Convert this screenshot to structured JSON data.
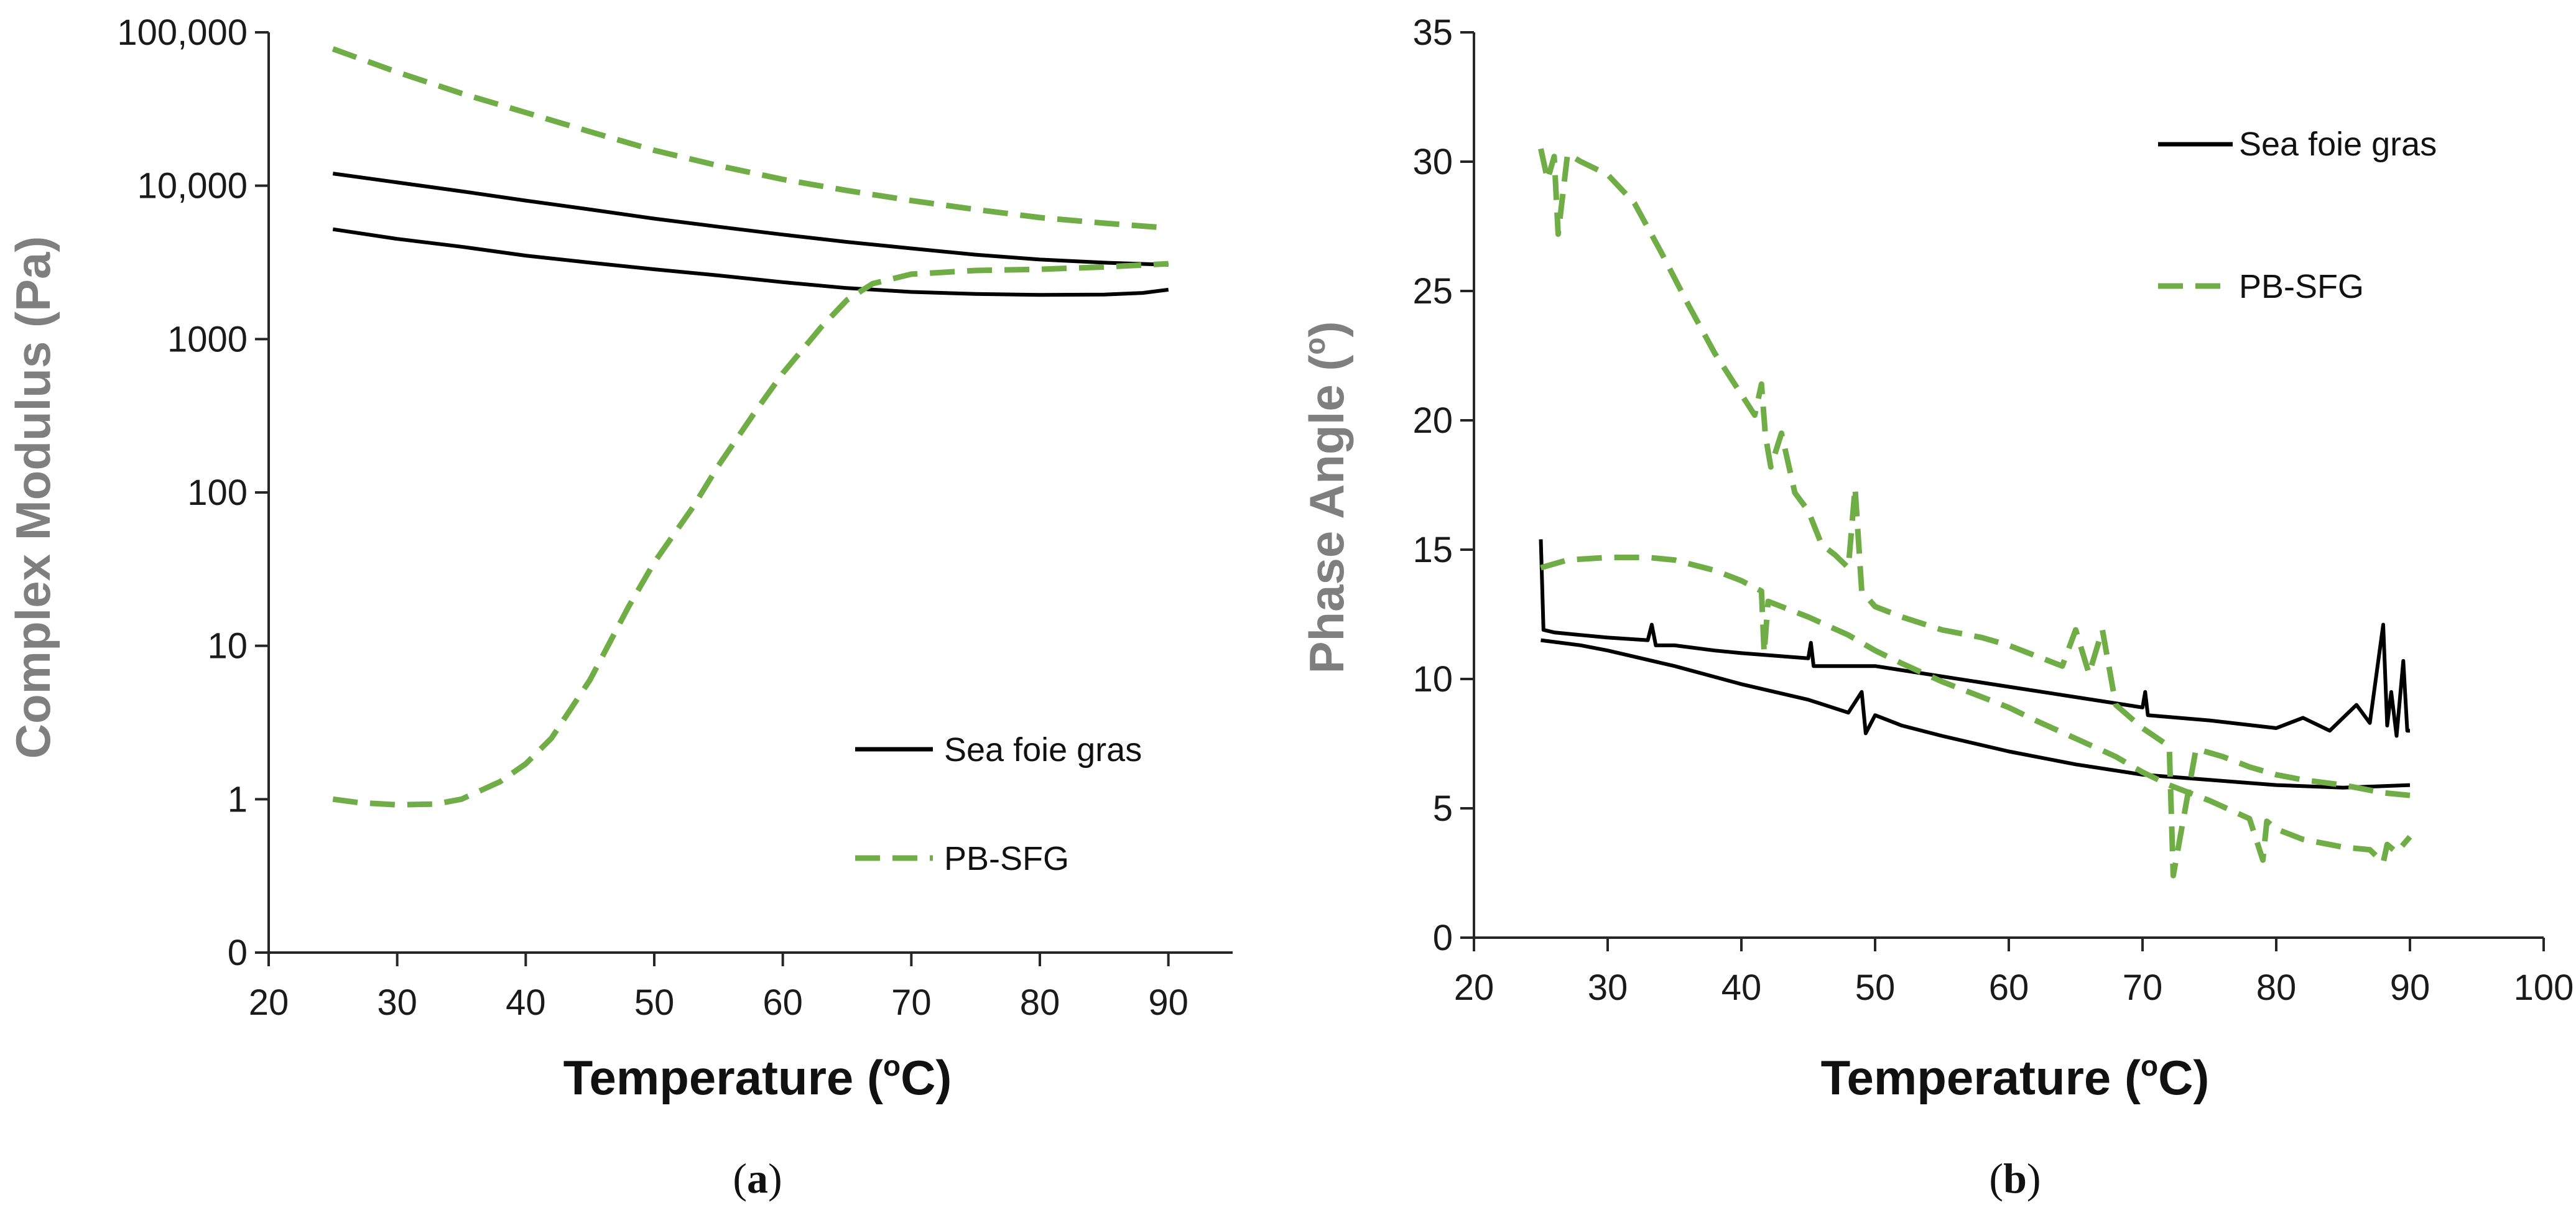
{
  "colors": {
    "black": "#000000",
    "green": "#70ad47",
    "axis": "#262626"
  },
  "chart_data": [
    {
      "id": "a",
      "type": "line",
      "panel_label": "a",
      "title": "",
      "xlabel": "Temperature (°C)",
      "xlabel_main": "Temperature (",
      "xlabel_deg": "o",
      "xlabel_tail": "C)",
      "ylabel": "Complex Modulus (Pa)",
      "yscale": "log",
      "xlim": [
        20,
        95
      ],
      "ylim": [
        0.1,
        100000
      ],
      "xticks": [
        20,
        30,
        40,
        50,
        60,
        70,
        80,
        90
      ],
      "yticks": [
        {
          "value": 0.1,
          "label": "0"
        },
        {
          "value": 1,
          "label": "1"
        },
        {
          "value": 10,
          "label": "10"
        },
        {
          "value": 100,
          "label": "100"
        },
        {
          "value": 1000,
          "label": "1000"
        },
        {
          "value": 10000,
          "label": "10,000"
        },
        {
          "value": 100000,
          "label": "100,000"
        }
      ],
      "legend": [
        {
          "name": "Sea foie gras",
          "style": "solid",
          "color": "#000000"
        },
        {
          "name": "PB-SFG",
          "style": "dashed",
          "color": "#70ad47"
        }
      ],
      "series": [
        {
          "name": "Sea foie gras (upper)",
          "style": "solid",
          "color": "#000000",
          "x": [
            25,
            30,
            35,
            40,
            45,
            50,
            55,
            60,
            65,
            70,
            75,
            80,
            85,
            90
          ],
          "y": [
            12000,
            10500,
            9200,
            8000,
            7000,
            6100,
            5400,
            4800,
            4300,
            3900,
            3550,
            3300,
            3150,
            3050
          ]
        },
        {
          "name": "Sea foie gras (lower)",
          "style": "solid",
          "color": "#000000",
          "x": [
            25,
            30,
            35,
            40,
            45,
            50,
            55,
            60,
            65,
            70,
            75,
            80,
            85,
            88,
            90
          ],
          "y": [
            5200,
            4500,
            4000,
            3500,
            3150,
            2850,
            2600,
            2350,
            2150,
            2030,
            1970,
            1940,
            1950,
            2000,
            2100
          ]
        },
        {
          "name": "PB-SFG (upper)",
          "style": "dashed",
          "color": "#70ad47",
          "x": [
            25,
            30,
            35,
            40,
            45,
            50,
            55,
            60,
            65,
            70,
            75,
            80,
            85,
            90
          ],
          "y": [
            78000,
            55000,
            40000,
            30000,
            22500,
            17000,
            13500,
            11000,
            9300,
            8000,
            7000,
            6200,
            5700,
            5300
          ]
        },
        {
          "name": "PB-SFG (lower)",
          "style": "dashed",
          "color": "#70ad47",
          "x": [
            25,
            27,
            30,
            33,
            35,
            38,
            40,
            42,
            45,
            48,
            50,
            53,
            55,
            58,
            60,
            63,
            65,
            67,
            70,
            75,
            80,
            85,
            90
          ],
          "y": [
            1.0,
            0.95,
            0.92,
            0.93,
            1.0,
            1.3,
            1.7,
            2.5,
            6,
            18,
            35,
            80,
            150,
            350,
            600,
            1200,
            1800,
            2300,
            2650,
            2800,
            2850,
            2950,
            3100
          ]
        }
      ]
    },
    {
      "id": "b",
      "type": "line",
      "panel_label": "b",
      "title": "",
      "xlabel": "Temperature (°C)",
      "xlabel_main": "Temperature (",
      "xlabel_deg": "o",
      "xlabel_tail": "C)",
      "ylabel": "Phase Angle (°)",
      "ylabel_main": "Phase Angle  (",
      "ylabel_deg": "o",
      "ylabel_tail": ")",
      "yscale": "linear",
      "xlim": [
        20,
        100
      ],
      "ylim": [
        0,
        35
      ],
      "xticks": [
        20,
        30,
        40,
        50,
        60,
        70,
        80,
        90,
        100
      ],
      "yticks": [
        {
          "value": 0,
          "label": "0"
        },
        {
          "value": 5,
          "label": "5"
        },
        {
          "value": 10,
          "label": "10"
        },
        {
          "value": 15,
          "label": "15"
        },
        {
          "value": 20,
          "label": "20"
        },
        {
          "value": 25,
          "label": "25"
        },
        {
          "value": 30,
          "label": "30"
        },
        {
          "value": 35,
          "label": "35"
        }
      ],
      "legend": [
        {
          "name": "Sea foie gras",
          "style": "solid",
          "color": "#000000"
        },
        {
          "name": "PB-SFG",
          "style": "dashed",
          "color": "#70ad47"
        }
      ],
      "series": [
        {
          "name": "Sea foie gras (upper)",
          "style": "solid",
          "color": "#000000",
          "x": [
            25,
            25.2,
            26,
            28,
            30,
            33,
            33.3,
            33.6,
            35,
            38,
            40,
            45,
            45.2,
            45.4,
            50,
            55,
            60,
            65,
            70,
            70.2,
            70.4,
            75,
            80,
            82,
            84,
            86,
            87,
            88,
            88.3,
            88.6,
            89,
            89.5,
            89.8,
            90
          ],
          "y": [
            15.4,
            11.9,
            11.8,
            11.7,
            11.6,
            11.5,
            12.1,
            11.3,
            11.3,
            11.1,
            11.0,
            10.8,
            11.4,
            10.5,
            10.5,
            10.1,
            9.7,
            9.3,
            8.9,
            9.5,
            8.6,
            8.4,
            8.1,
            8.5,
            8.0,
            9.0,
            8.3,
            12.1,
            8.2,
            9.5,
            7.8,
            10.7,
            8.0,
            8.0
          ]
        },
        {
          "name": "Sea foie gras (lower)",
          "style": "solid",
          "color": "#000000",
          "x": [
            25,
            28,
            30,
            35,
            40,
            45,
            48,
            49,
            49.3,
            50,
            52,
            55,
            60,
            65,
            70,
            75,
            80,
            85,
            90
          ],
          "y": [
            11.5,
            11.3,
            11.1,
            10.5,
            9.8,
            9.2,
            8.7,
            9.5,
            7.9,
            8.6,
            8.2,
            7.8,
            7.2,
            6.7,
            6.3,
            6.1,
            5.9,
            5.8,
            5.9
          ]
        },
        {
          "name": "PB-SFG (upper)",
          "style": "dashed",
          "color": "#70ad47",
          "x": [
            25,
            25.5,
            26,
            26.3,
            27,
            28,
            30,
            32,
            34,
            36,
            38,
            40,
            41,
            41.5,
            41.8,
            42.2,
            43,
            44,
            45,
            46,
            47,
            48,
            48.5,
            49,
            50,
            52,
            55,
            58,
            60,
            62,
            64,
            65,
            66,
            67,
            68,
            70,
            72,
            72.3,
            74,
            76,
            78,
            80,
            82,
            85,
            88,
            90
          ],
          "y": [
            30.5,
            29.3,
            30.2,
            27.2,
            30.3,
            30.0,
            29.5,
            28.4,
            26.5,
            24.5,
            22.6,
            21.0,
            20.2,
            21.4,
            19.4,
            18.2,
            19.5,
            17.2,
            16.5,
            15.2,
            14.8,
            14.3,
            17.4,
            13.4,
            12.8,
            12.4,
            11.9,
            11.6,
            11.3,
            10.9,
            10.5,
            11.9,
            10.2,
            11.9,
            9.0,
            8.1,
            7.4,
            2.4,
            7.3,
            7.0,
            6.6,
            6.3,
            6.1,
            5.9,
            5.6,
            5.5
          ]
        },
        {
          "name": "PB-SFG (lower)",
          "style": "dashed",
          "color": "#70ad47",
          "x": [
            25,
            27,
            30,
            33,
            35,
            38,
            40,
            41.5,
            41.7,
            42,
            45,
            48,
            50,
            52,
            55,
            58,
            60,
            62,
            65,
            68,
            70,
            72,
            75,
            78,
            79,
            79.3,
            80,
            82,
            85,
            87,
            88,
            88.3,
            89,
            90
          ],
          "y": [
            14.3,
            14.6,
            14.7,
            14.7,
            14.6,
            14.2,
            13.8,
            13.4,
            11.0,
            13.0,
            12.4,
            11.7,
            11.1,
            10.6,
            9.9,
            9.3,
            8.9,
            8.4,
            7.7,
            7.0,
            6.4,
            5.9,
            5.3,
            4.6,
            3.0,
            4.5,
            4.2,
            3.8,
            3.5,
            3.4,
            2.9,
            3.6,
            3.3,
            3.9
          ]
        }
      ]
    }
  ]
}
